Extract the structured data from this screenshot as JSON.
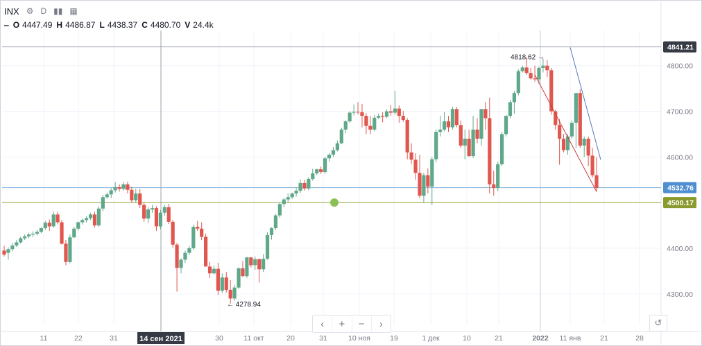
{
  "header": {
    "symbol": "INX",
    "interval": "D",
    "open_label": "O",
    "open": "4447.49",
    "high_label": "H",
    "high": "4486.87",
    "low_label": "L",
    "low": "4438.37",
    "close_label": "C",
    "close": "4480.70",
    "volume_label": "V",
    "volume": "24.4k"
  },
  "icons": [
    "gear-icon",
    "bar-chart-icon",
    "chart-type-icon",
    "minus-icon"
  ],
  "navigation": {
    "prev": "‹",
    "zoom_in": "+",
    "zoom_out": "−",
    "next": "›",
    "reset": "↺"
  },
  "chart_data": {
    "type": "candlestick",
    "up_color": "#5fa88a",
    "down_color": "#e0574f",
    "y_ticks": [
      "4300.00",
      "4400.00",
      "4500.00",
      "4600.00",
      "4700.00",
      "4800.00"
    ],
    "y_tick_values": [
      4300,
      4400,
      4500,
      4600,
      4700,
      4800
    ],
    "ylim": [
      4233,
      4877
    ],
    "x_ticks": [
      "11",
      "22",
      "31",
      "14 сен 2021",
      "30",
      "11 окт",
      "20",
      "31",
      "10 ноя",
      "19",
      "1 дек",
      "10",
      "21",
      "2022",
      "11 янв",
      "21",
      "28"
    ],
    "price_labels": [
      {
        "label": "4841.21",
        "value": 4841.21,
        "color": "#363a45"
      },
      {
        "label": "4532.76",
        "value": 4532.76,
        "color": "#4f8ed0"
      },
      {
        "label": "4500.17",
        "value": 4500.17,
        "color": "#8a9a2e"
      }
    ],
    "horizontal_lines": [
      {
        "value": 4841.21,
        "color": "#9aa0a8"
      },
      {
        "value": 4532.76,
        "color": "#7fb3e0"
      },
      {
        "value": 4500.17,
        "color": "#9aa43c"
      }
    ],
    "annotations": [
      {
        "text": "4818.62 →",
        "value": 4818.62,
        "side": "left"
      },
      {
        "text": "← 4278.94",
        "value": 4278.94,
        "side": "right"
      }
    ],
    "marker": {
      "value": 4500.17,
      "color": "#8cbf55"
    },
    "trendlines": [
      {
        "color": "#5577bb",
        "from": 4840,
        "to": 4594
      },
      {
        "color": "#d03a3a",
        "from": 4780,
        "to": 4524
      }
    ],
    "candles": [
      [
        4395,
        4405,
        4382,
        4386
      ],
      [
        4390,
        4402,
        4375,
        4398
      ],
      [
        4398,
        4412,
        4393,
        4406
      ],
      [
        4406,
        4418,
        4403,
        4413
      ],
      [
        4413,
        4425,
        4410,
        4422
      ],
      [
        4422,
        4430,
        4418,
        4426
      ],
      [
        4426,
        4434,
        4422,
        4430
      ],
      [
        4430,
        4437,
        4425,
        4432
      ],
      [
        4432,
        4440,
        4428,
        4436
      ],
      [
        4436,
        4446,
        4433,
        4444
      ],
      [
        4444,
        4460,
        4440,
        4456
      ],
      [
        4456,
        4463,
        4438,
        4448
      ],
      [
        4448,
        4480,
        4445,
        4474
      ],
      [
        4474,
        4480,
        4452,
        4457
      ],
      [
        4457,
        4462,
        4408,
        4410
      ],
      [
        4410,
        4418,
        4363,
        4370
      ],
      [
        4370,
        4430,
        4367,
        4424
      ],
      [
        4424,
        4447,
        4422,
        4443
      ],
      [
        4443,
        4459,
        4439,
        4457
      ],
      [
        4457,
        4465,
        4452,
        4462
      ],
      [
        4462,
        4470,
        4456,
        4466
      ],
      [
        4466,
        4478,
        4462,
        4474
      ],
      [
        4474,
        4480,
        4445,
        4450
      ],
      [
        4450,
        4492,
        4447,
        4487
      ],
      [
        4487,
        4517,
        4482,
        4512
      ],
      [
        4512,
        4522,
        4508,
        4518
      ],
      [
        4518,
        4532,
        4510,
        4527
      ],
      [
        4527,
        4545,
        4522,
        4534
      ],
      [
        4534,
        4540,
        4524,
        4530
      ],
      [
        4530,
        4545,
        4526,
        4540
      ],
      [
        4540,
        4546,
        4520,
        4528
      ],
      [
        4528,
        4535,
        4500,
        4505
      ],
      [
        4505,
        4530,
        4500,
        4520
      ],
      [
        4520,
        4530,
        4488,
        4495
      ],
      [
        4495,
        4500,
        4458,
        4465
      ],
      [
        4465,
        4490,
        4455,
        4485
      ],
      [
        4485,
        4495,
        4478,
        4488
      ],
      [
        4488,
        4492,
        4438,
        4448
      ],
      [
        4448,
        4484,
        4442,
        4478
      ],
      [
        4478,
        4495,
        4471,
        4490
      ],
      [
        4490,
        4497,
        4453,
        4458
      ],
      [
        4458,
        4462,
        4402,
        4408
      ],
      [
        4408,
        4412,
        4305,
        4357
      ],
      [
        4357,
        4378,
        4345,
        4375
      ],
      [
        4375,
        4395,
        4368,
        4390
      ],
      [
        4390,
        4405,
        4385,
        4400
      ],
      [
        4400,
        4452,
        4397,
        4447
      ],
      [
        4447,
        4460,
        4438,
        4443
      ],
      [
        4443,
        4457,
        4418,
        4425
      ],
      [
        4425,
        4432,
        4360,
        4360
      ],
      [
        4360,
        4370,
        4335,
        4345
      ],
      [
        4345,
        4362,
        4343,
        4355
      ],
      [
        4355,
        4368,
        4298,
        4307
      ],
      [
        4307,
        4345,
        4302,
        4336
      ],
      [
        4336,
        4348,
        4303,
        4309
      ],
      [
        4309,
        4330,
        4279,
        4290
      ],
      [
        4290,
        4320,
        4285,
        4314
      ],
      [
        4314,
        4358,
        4311,
        4356
      ],
      [
        4356,
        4372,
        4337,
        4339
      ],
      [
        4339,
        4381,
        4335,
        4380
      ],
      [
        4380,
        4380,
        4358,
        4363
      ],
      [
        4363,
        4382,
        4353,
        4376
      ],
      [
        4376,
        4378,
        4325,
        4354
      ],
      [
        4354,
        4387,
        4348,
        4377
      ],
      [
        4377,
        4435,
        4375,
        4429
      ],
      [
        4429,
        4446,
        4419,
        4444
      ],
      [
        4444,
        4475,
        4440,
        4472
      ],
      [
        4472,
        4500,
        4467,
        4497
      ],
      [
        4497,
        4510,
        4490,
        4507
      ],
      [
        4507,
        4520,
        4500,
        4512
      ],
      [
        4512,
        4522,
        4508,
        4520
      ],
      [
        4520,
        4532,
        4513,
        4526
      ],
      [
        4526,
        4550,
        4521,
        4543
      ],
      [
        4543,
        4550,
        4526,
        4531
      ],
      [
        4531,
        4556,
        4527,
        4552
      ],
      [
        4552,
        4574,
        4548,
        4564
      ],
      [
        4564,
        4574,
        4560,
        4573
      ],
      [
        4573,
        4579,
        4563,
        4567
      ],
      [
        4567,
        4600,
        4563,
        4597
      ],
      [
        4597,
        4609,
        4590,
        4605
      ],
      [
        4605,
        4622,
        4600,
        4615
      ],
      [
        4615,
        4636,
        4612,
        4630
      ],
      [
        4630,
        4664,
        4628,
        4660
      ],
      [
        4660,
        4680,
        4652,
        4678
      ],
      [
        4678,
        4700,
        4675,
        4697
      ],
      [
        4697,
        4715,
        4691,
        4699
      ],
      [
        4699,
        4720,
        4693,
        4698
      ],
      [
        4698,
        4716,
        4665,
        4690
      ],
      [
        4690,
        4696,
        4650,
        4668
      ],
      [
        4668,
        4690,
        4650,
        4660
      ],
      [
        4660,
        4692,
        4656,
        4686
      ],
      [
        4686,
        4695,
        4683,
        4690
      ],
      [
        4690,
        4698,
        4676,
        4688
      ],
      [
        4688,
        4704,
        4685,
        4700
      ],
      [
        4700,
        4714,
        4690,
        4697
      ],
      [
        4697,
        4745,
        4692,
        4706
      ],
      [
        4706,
        4713,
        4675,
        4690
      ],
      [
        4690,
        4701,
        4677,
        4681
      ],
      [
        4681,
        4685,
        4595,
        4610
      ],
      [
        4610,
        4630,
        4585,
        4594
      ],
      [
        4594,
        4608,
        4550,
        4565
      ],
      [
        4565,
        4605,
        4510,
        4515
      ],
      [
        4515,
        4565,
        4500,
        4560
      ],
      [
        4560,
        4575,
        4520,
        4535
      ],
      [
        4535,
        4600,
        4495,
        4595
      ],
      [
        4595,
        4660,
        4588,
        4655
      ],
      [
        4655,
        4690,
        4645,
        4660
      ],
      [
        4660,
        4698,
        4656,
        4678
      ],
      [
        4678,
        4690,
        4655,
        4665
      ],
      [
        4665,
        4710,
        4660,
        4705
      ],
      [
        4705,
        4710,
        4665,
        4670
      ],
      [
        4670,
        4680,
        4620,
        4625
      ],
      [
        4625,
        4660,
        4595,
        4640
      ],
      [
        4640,
        4660,
        4600,
        4602
      ],
      [
        4602,
        4690,
        4598,
        4660
      ],
      [
        4660,
        4685,
        4630,
        4640
      ],
      [
        4640,
        4700,
        4625,
        4705
      ],
      [
        4705,
        4720,
        4660,
        4685
      ],
      [
        4685,
        4730,
        4520,
        4540
      ],
      [
        4540,
        4570,
        4515,
        4532
      ],
      [
        4532,
        4590,
        4525,
        4584
      ],
      [
        4584,
        4655,
        4580,
        4650
      ],
      [
        4650,
        4692,
        4645,
        4690
      ],
      [
        4690,
        4725,
        4685,
        4720
      ],
      [
        4720,
        4745,
        4695,
        4740
      ],
      [
        4740,
        4792,
        4735,
        4788
      ],
      [
        4788,
        4800,
        4785,
        4796
      ],
      [
        4796,
        4818.62,
        4780,
        4784
      ],
      [
        4784,
        4795,
        4770,
        4772
      ],
      [
        4772,
        4800,
        4765,
        4770
      ],
      [
        4770,
        4798,
        4760,
        4795
      ],
      [
        4795,
        4815,
        4785,
        4800
      ],
      [
        4800,
        4812,
        4775,
        4790
      ],
      [
        4790,
        4795,
        4693,
        4700
      ],
      [
        4700,
        4703,
        4660,
        4670
      ],
      [
        4670,
        4683,
        4583,
        4640
      ],
      [
        4640,
        4650,
        4610,
        4615
      ],
      [
        4615,
        4650,
        4605,
        4645
      ],
      [
        4645,
        4680,
        4640,
        4675
      ],
      [
        4675,
        4740,
        4620,
        4740
      ],
      [
        4740,
        4748,
        4620,
        4625
      ],
      [
        4625,
        4645,
        4600,
        4640
      ],
      [
        4640,
        4645,
        4580,
        4603
      ],
      [
        4603,
        4620,
        4555,
        4560
      ],
      [
        4560,
        4600,
        4524,
        4532
      ]
    ]
  }
}
